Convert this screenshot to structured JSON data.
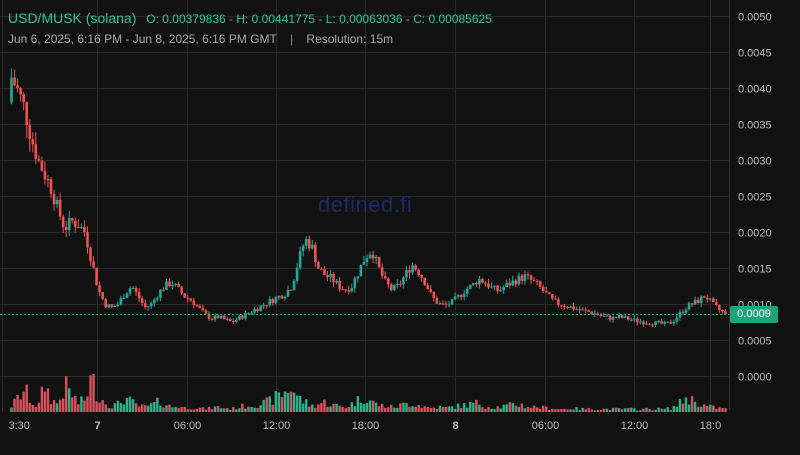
{
  "legend": {
    "pair": "USD/MUSK (solana)",
    "ohlc": "O: 0.00379836 - H: 0.00441775 - L: 0.00063036 - C: 0.00085625",
    "date_range": "Jun 6, 2025, 6:16 PM - Jun 8, 2025, 6:16 PM GMT",
    "separator": "|",
    "resolution": "Resolution: 15m"
  },
  "watermark": "defined.fi",
  "last_price_label": "0.0009",
  "colors": {
    "up": "#26a69a",
    "down": "#ef5350",
    "up_volume": "#2bb38a",
    "down_volume": "#d9535f",
    "grid": "#2a2a2a",
    "price_line": "#26a69a",
    "price_tag": "#1fa37a"
  },
  "chart_data": {
    "type": "candlestick",
    "price_axis_ticks": [
      "0.0050",
      "0.0045",
      "0.0040",
      "0.0035",
      "0.0030",
      "0.0025",
      "0.0020",
      "0.0015",
      "0.0010",
      "0.0005",
      "0.0000"
    ],
    "time_axis_ticks": [
      "3:30",
      "7",
      "06:00",
      "12:00",
      "18:00",
      "8",
      "06:00",
      "12:00",
      "18:0"
    ],
    "time_axis_bold": [
      false,
      true,
      false,
      false,
      false,
      true,
      false,
      false,
      false
    ],
    "ylim": [
      0.0,
      0.005
    ],
    "last_price": 0.00086,
    "open": 0.00379836,
    "high": 0.00441775,
    "low": 0.00063036,
    "close": 0.00085625,
    "close_path": [
      0.00415,
      0.00395,
      0.0037,
      0.0033,
      0.003,
      0.0028,
      0.0026,
      0.0023,
      0.00205,
      0.00215,
      0.0021,
      0.002,
      0.0016,
      0.0012,
      0.001,
      0.00095,
      0.001,
      0.00115,
      0.00125,
      0.0011,
      0.00095,
      0.001,
      0.00115,
      0.00125,
      0.0013,
      0.0012,
      0.0011,
      0.00105,
      0.00095,
      0.00085,
      0.0008,
      0.00082,
      0.00078,
      0.00075,
      0.0008,
      0.00085,
      0.0009,
      0.00095,
      0.001,
      0.00105,
      0.0011,
      0.00115,
      0.00125,
      0.0016,
      0.0019,
      0.0018,
      0.0015,
      0.0014,
      0.00135,
      0.00125,
      0.0012,
      0.00125,
      0.00145,
      0.00165,
      0.00175,
      0.0015,
      0.0013,
      0.0012,
      0.00125,
      0.0014,
      0.00155,
      0.00145,
      0.0013,
      0.0011,
      0.001,
      0.00098,
      0.00102,
      0.0011,
      0.0012,
      0.00125,
      0.00135,
      0.0013,
      0.00122,
      0.00118,
      0.00125,
      0.0013,
      0.00135,
      0.00138,
      0.00132,
      0.00125,
      0.00115,
      0.00105,
      0.001,
      0.00098,
      0.00095,
      0.00092,
      0.0009,
      0.00088,
      0.00085,
      0.00082,
      0.0008,
      0.00082,
      0.0008,
      0.00078,
      0.00076,
      0.00075,
      0.00074,
      0.00073,
      0.00072,
      0.00075,
      0.00085,
      0.00095,
      0.001,
      0.00105,
      0.00112,
      0.001,
      0.00092,
      0.00086
    ],
    "volume_path": [
      6,
      14,
      22,
      10,
      5,
      28,
      12,
      8,
      26,
      18,
      9,
      12,
      34,
      16,
      10,
      6,
      8,
      14,
      10,
      6,
      5,
      7,
      10,
      8,
      5,
      6,
      4,
      5,
      4,
      3,
      4,
      5,
      4,
      3,
      5,
      6,
      7,
      8,
      9,
      12,
      16,
      20,
      25,
      14,
      10,
      6,
      8,
      10,
      7,
      6,
      5,
      8,
      12,
      16,
      10,
      7,
      6,
      5,
      6,
      8,
      9,
      7,
      5,
      4,
      5,
      4,
      5,
      6,
      7,
      8,
      9,
      6,
      5,
      5,
      6,
      7,
      8,
      6,
      5,
      5,
      4,
      4,
      3,
      3,
      4,
      3,
      3,
      3,
      3,
      3,
      3,
      3,
      3,
      3,
      3,
      3,
      3,
      3,
      3,
      4,
      8,
      14,
      12,
      9,
      6,
      5,
      4,
      3
    ]
  }
}
